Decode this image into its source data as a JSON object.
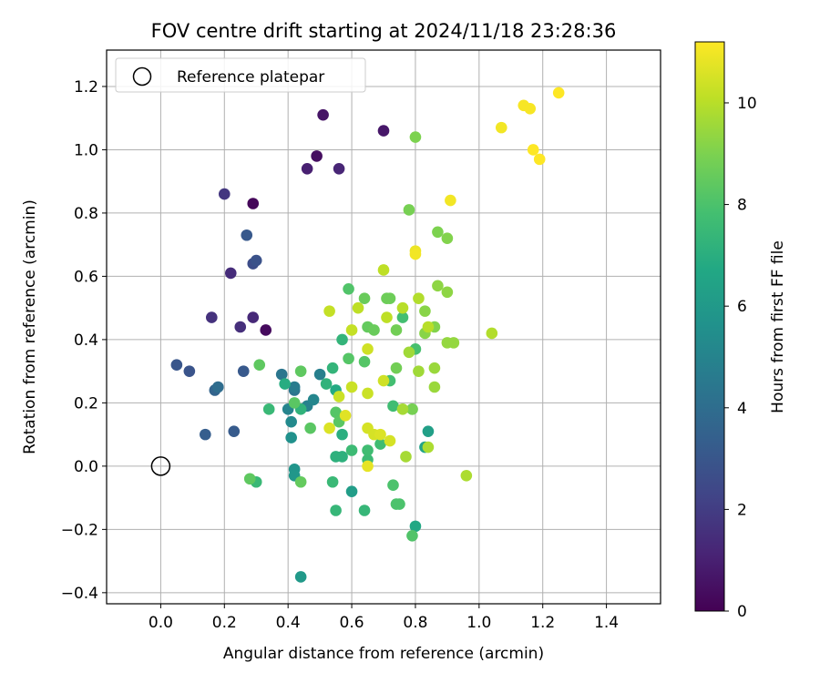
{
  "chart_data": {
    "type": "scatter",
    "title": "FOV centre drift starting at 2024/11/18 23:28:36",
    "xlabel": "Angular distance from reference (arcmin)",
    "ylabel": "Rotation from reference (arcmin)",
    "xlim": [
      -0.17,
      1.57
    ],
    "ylim": [
      -0.435,
      1.315
    ],
    "xticks": [
      "0.0",
      "0.2",
      "0.4",
      "0.6",
      "0.8",
      "1.0",
      "1.2",
      "1.4"
    ],
    "yticks": [
      "-0.4",
      "-0.2",
      "0.0",
      "0.2",
      "0.4",
      "0.6",
      "0.8",
      "1.0",
      "1.2"
    ],
    "grid": true,
    "legend": {
      "position": "top-left",
      "entries": [
        {
          "label": "Reference platepar",
          "marker": "open-circle"
        }
      ]
    },
    "reference_point": {
      "x": 0.0,
      "y": 0.0
    },
    "colorbar": {
      "label": "Hours from first FF file",
      "range": [
        0,
        11.2
      ],
      "ticks": [
        "0",
        "2",
        "4",
        "6",
        "8",
        "10"
      ],
      "colormap": "viridis"
    },
    "points": [
      {
        "x": 0.29,
        "y": 0.83,
        "h": 0.2
      },
      {
        "x": 0.33,
        "y": 0.43,
        "h": 0.3
      },
      {
        "x": 0.49,
        "y": 0.98,
        "h": 0.4
      },
      {
        "x": 0.51,
        "y": 1.11,
        "h": 0.6
      },
      {
        "x": 0.7,
        "y": 1.06,
        "h": 0.7
      },
      {
        "x": 0.46,
        "y": 0.94,
        "h": 1.0
      },
      {
        "x": 0.56,
        "y": 0.94,
        "h": 1.2
      },
      {
        "x": 0.29,
        "y": 0.47,
        "h": 1.3
      },
      {
        "x": 0.22,
        "y": 0.61,
        "h": 1.4
      },
      {
        "x": 0.25,
        "y": 0.44,
        "h": 1.5
      },
      {
        "x": 0.16,
        "y": 0.47,
        "h": 1.6
      },
      {
        "x": 0.2,
        "y": 0.86,
        "h": 1.8
      },
      {
        "x": 0.29,
        "y": 0.64,
        "h": 2.6
      },
      {
        "x": 0.3,
        "y": 0.65,
        "h": 2.8
      },
      {
        "x": 0.09,
        "y": 0.3,
        "h": 2.9
      },
      {
        "x": 0.05,
        "y": 0.32,
        "h": 3.0
      },
      {
        "x": 0.26,
        "y": 0.3,
        "h": 3.1
      },
      {
        "x": 0.27,
        "y": 0.73,
        "h": 3.1
      },
      {
        "x": 0.23,
        "y": 0.11,
        "h": 3.2
      },
      {
        "x": 0.14,
        "y": 0.1,
        "h": 3.3
      },
      {
        "x": 0.17,
        "y": 0.24,
        "h": 3.6
      },
      {
        "x": 0.18,
        "y": 0.25,
        "h": 4.0
      },
      {
        "x": 0.42,
        "y": 0.24,
        "h": 4.3
      },
      {
        "x": 0.38,
        "y": 0.29,
        "h": 4.4
      },
      {
        "x": 0.42,
        "y": 0.25,
        "h": 4.6
      },
      {
        "x": 0.5,
        "y": 0.29,
        "h": 4.8
      },
      {
        "x": 0.46,
        "y": 0.19,
        "h": 4.9
      },
      {
        "x": 0.4,
        "y": 0.18,
        "h": 5.0
      },
      {
        "x": 0.48,
        "y": 0.21,
        "h": 5.1
      },
      {
        "x": 0.41,
        "y": 0.14,
        "h": 5.3
      },
      {
        "x": 0.41,
        "y": 0.09,
        "h": 5.6
      },
      {
        "x": 0.42,
        "y": -0.01,
        "h": 5.8
      },
      {
        "x": 0.42,
        "y": -0.03,
        "h": 5.9
      },
      {
        "x": 0.44,
        "y": -0.35,
        "h": 6.0
      },
      {
        "x": 0.6,
        "y": -0.08,
        "h": 6.2
      },
      {
        "x": 0.84,
        "y": 0.11,
        "h": 6.3
      },
      {
        "x": 0.83,
        "y": 0.06,
        "h": 6.5
      },
      {
        "x": 0.8,
        "y": -0.19,
        "h": 6.7
      },
      {
        "x": 0.55,
        "y": 0.24,
        "h": 6.8
      },
      {
        "x": 0.39,
        "y": 0.26,
        "h": 6.9
      },
      {
        "x": 0.57,
        "y": 0.1,
        "h": 7.0
      },
      {
        "x": 0.55,
        "y": 0.03,
        "h": 7.1
      },
      {
        "x": 0.57,
        "y": 0.03,
        "h": 7.1
      },
      {
        "x": 0.44,
        "y": 0.18,
        "h": 7.2
      },
      {
        "x": 0.52,
        "y": 0.26,
        "h": 7.2
      },
      {
        "x": 0.57,
        "y": 0.4,
        "h": 7.3
      },
      {
        "x": 0.54,
        "y": 0.31,
        "h": 7.3
      },
      {
        "x": 0.55,
        "y": -0.14,
        "h": 7.4
      },
      {
        "x": 0.64,
        "y": -0.14,
        "h": 7.4
      },
      {
        "x": 0.54,
        "y": -0.05,
        "h": 7.5
      },
      {
        "x": 0.3,
        "y": -0.05,
        "h": 7.5
      },
      {
        "x": 0.34,
        "y": 0.18,
        "h": 7.5
      },
      {
        "x": 0.65,
        "y": 0.02,
        "h": 7.6
      },
      {
        "x": 0.6,
        "y": 0.05,
        "h": 7.6
      },
      {
        "x": 0.65,
        "y": 0.05,
        "h": 7.7
      },
      {
        "x": 0.69,
        "y": 0.07,
        "h": 7.7
      },
      {
        "x": 0.73,
        "y": 0.19,
        "h": 7.7
      },
      {
        "x": 0.72,
        "y": 0.27,
        "h": 7.8
      },
      {
        "x": 0.76,
        "y": 0.47,
        "h": 7.8
      },
      {
        "x": 0.8,
        "y": 0.37,
        "h": 7.9
      },
      {
        "x": 0.79,
        "y": 0.18,
        "h": 7.9
      },
      {
        "x": 0.73,
        "y": -0.06,
        "h": 8.0
      },
      {
        "x": 0.74,
        "y": -0.12,
        "h": 8.0
      },
      {
        "x": 0.75,
        "y": -0.12,
        "h": 8.0
      },
      {
        "x": 0.79,
        "y": -0.22,
        "h": 8.1
      },
      {
        "x": 0.59,
        "y": 0.56,
        "h": 8.1
      },
      {
        "x": 0.64,
        "y": 0.33,
        "h": 8.2
      },
      {
        "x": 0.59,
        "y": 0.34,
        "h": 8.2
      },
      {
        "x": 0.55,
        "y": 0.17,
        "h": 8.2
      },
      {
        "x": 0.56,
        "y": 0.14,
        "h": 8.3
      },
      {
        "x": 0.47,
        "y": 0.12,
        "h": 8.3
      },
      {
        "x": 0.42,
        "y": 0.2,
        "h": 8.3
      },
      {
        "x": 0.44,
        "y": 0.3,
        "h": 8.4
      },
      {
        "x": 0.31,
        "y": 0.32,
        "h": 8.4
      },
      {
        "x": 0.28,
        "y": -0.04,
        "h": 8.4
      },
      {
        "x": 0.44,
        "y": -0.05,
        "h": 8.5
      },
      {
        "x": 0.65,
        "y": 0.44,
        "h": 8.5
      },
      {
        "x": 0.67,
        "y": 0.43,
        "h": 8.6
      },
      {
        "x": 0.64,
        "y": 0.53,
        "h": 8.6
      },
      {
        "x": 0.71,
        "y": 0.53,
        "h": 8.7
      },
      {
        "x": 0.72,
        "y": 0.53,
        "h": 8.7
      },
      {
        "x": 0.74,
        "y": 0.43,
        "h": 8.8
      },
      {
        "x": 0.74,
        "y": 0.31,
        "h": 8.8
      },
      {
        "x": 0.79,
        "y": 0.18,
        "h": 8.9
      },
      {
        "x": 0.78,
        "y": 0.81,
        "h": 8.9
      },
      {
        "x": 0.8,
        "y": 1.04,
        "h": 9.0
      },
      {
        "x": 0.87,
        "y": 0.74,
        "h": 9.0
      },
      {
        "x": 0.9,
        "y": 0.72,
        "h": 9.1
      },
      {
        "x": 0.86,
        "y": 0.44,
        "h": 9.1
      },
      {
        "x": 0.83,
        "y": 0.49,
        "h": 9.2
      },
      {
        "x": 0.83,
        "y": 0.42,
        "h": 9.2
      },
      {
        "x": 0.9,
        "y": 0.55,
        "h": 9.3
      },
      {
        "x": 0.87,
        "y": 0.57,
        "h": 9.3
      },
      {
        "x": 0.9,
        "y": 0.39,
        "h": 9.4
      },
      {
        "x": 0.92,
        "y": 0.39,
        "h": 9.4
      },
      {
        "x": 0.86,
        "y": 0.31,
        "h": 9.5
      },
      {
        "x": 0.86,
        "y": 0.25,
        "h": 9.5
      },
      {
        "x": 0.81,
        "y": 0.3,
        "h": 9.6
      },
      {
        "x": 0.78,
        "y": 0.36,
        "h": 9.6
      },
      {
        "x": 0.76,
        "y": 0.18,
        "h": 9.7
      },
      {
        "x": 0.77,
        "y": 0.03,
        "h": 9.7
      },
      {
        "x": 0.84,
        "y": 0.06,
        "h": 9.8
      },
      {
        "x": 0.96,
        "y": -0.03,
        "h": 9.8
      },
      {
        "x": 1.04,
        "y": 0.42,
        "h": 9.9
      },
      {
        "x": 0.81,
        "y": 0.53,
        "h": 9.9
      },
      {
        "x": 0.84,
        "y": 0.44,
        "h": 10.0
      },
      {
        "x": 0.76,
        "y": 0.5,
        "h": 10.0
      },
      {
        "x": 0.71,
        "y": 0.47,
        "h": 10.1
      },
      {
        "x": 0.7,
        "y": 0.62,
        "h": 10.1
      },
      {
        "x": 0.62,
        "y": 0.5,
        "h": 10.1
      },
      {
        "x": 0.6,
        "y": 0.43,
        "h": 10.2
      },
      {
        "x": 0.53,
        "y": 0.49,
        "h": 10.2
      },
      {
        "x": 0.6,
        "y": 0.25,
        "h": 10.3
      },
      {
        "x": 0.56,
        "y": 0.22,
        "h": 10.3
      },
      {
        "x": 0.65,
        "y": 0.23,
        "h": 10.3
      },
      {
        "x": 0.7,
        "y": 0.27,
        "h": 10.4
      },
      {
        "x": 0.65,
        "y": 0.37,
        "h": 10.4
      },
      {
        "x": 0.65,
        "y": 0.12,
        "h": 10.5
      },
      {
        "x": 0.67,
        "y": 0.1,
        "h": 10.5
      },
      {
        "x": 0.72,
        "y": 0.08,
        "h": 10.5
      },
      {
        "x": 0.69,
        "y": 0.1,
        "h": 10.6
      },
      {
        "x": 0.53,
        "y": 0.12,
        "h": 10.6
      },
      {
        "x": 0.58,
        "y": 0.16,
        "h": 10.7
      },
      {
        "x": 0.65,
        "y": 0.0,
        "h": 10.8
      },
      {
        "x": 0.8,
        "y": 0.68,
        "h": 10.9
      },
      {
        "x": 0.8,
        "y": 0.67,
        "h": 11.0
      },
      {
        "x": 0.91,
        "y": 0.84,
        "h": 11.0
      },
      {
        "x": 1.07,
        "y": 1.07,
        "h": 11.0
      },
      {
        "x": 1.14,
        "y": 1.14,
        "h": 11.1
      },
      {
        "x": 1.16,
        "y": 1.13,
        "h": 11.1
      },
      {
        "x": 1.25,
        "y": 1.18,
        "h": 11.2
      },
      {
        "x": 1.17,
        "y": 1.0,
        "h": 11.2
      },
      {
        "x": 1.19,
        "y": 0.97,
        "h": 11.2
      }
    ]
  }
}
